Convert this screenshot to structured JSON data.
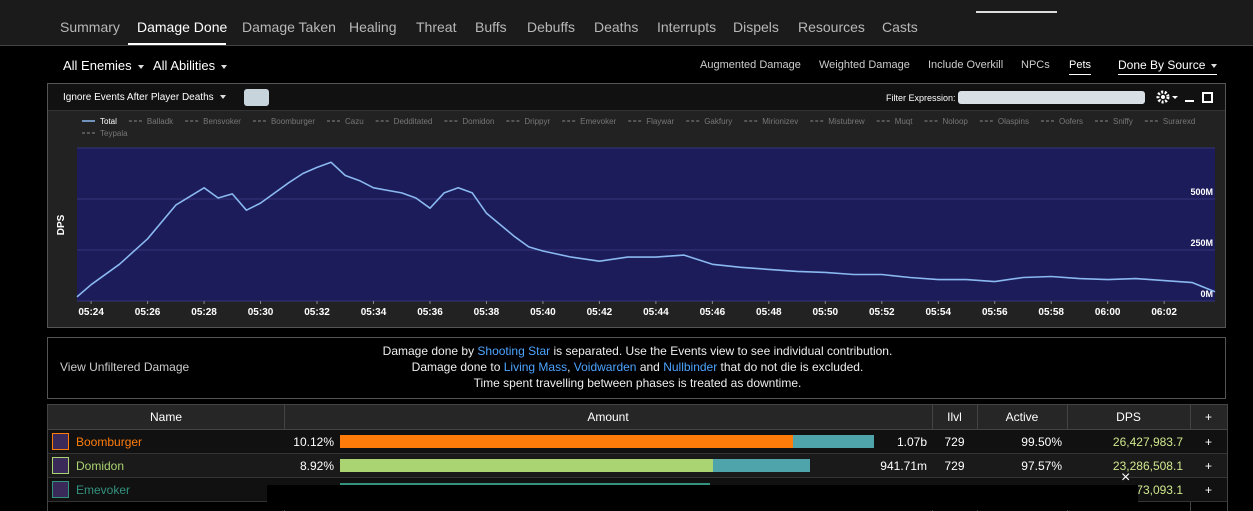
{
  "tabs": [
    "Summary",
    "Damage Done",
    "Damage Taken",
    "Healing",
    "Threat",
    "Buffs",
    "Debuffs",
    "Deaths",
    "Interrupts",
    "Dispels",
    "Resources",
    "Casts"
  ],
  "filters": {
    "enemies": "All Enemies",
    "abilities": "All Abilities",
    "options": [
      "Augmented Damage",
      "Weighted Damage",
      "Include Overkill",
      "NPCs",
      "Pets"
    ],
    "source": "Done By Source"
  },
  "panel": {
    "ignore": "Ignore Events After Player Deaths",
    "filter_label": "Filter Expression:"
  },
  "chart_data": {
    "type": "line",
    "y_label": "DPS",
    "x": [
      323.5,
      324,
      325,
      326,
      327,
      328,
      328.5,
      329,
      329.5,
      330,
      331,
      331.5,
      332,
      332.5,
      333,
      333.5,
      334,
      335,
      335.5,
      336,
      336.5,
      337,
      337.5,
      338,
      339,
      339.5,
      340,
      341,
      342,
      343,
      344,
      345,
      346,
      347,
      348,
      349,
      350,
      351,
      352,
      353,
      354,
      355,
      356,
      357,
      358,
      359,
      360,
      361,
      362,
      363,
      363.8
    ],
    "series": [
      {
        "name": "Total",
        "color": "#8ab8f0",
        "values": [
          20,
          80,
          180,
          305,
          470,
          555,
          505,
          525,
          445,
          480,
          580,
          625,
          655,
          680,
          615,
          590,
          555,
          530,
          505,
          455,
          530,
          555,
          530,
          430,
          315,
          265,
          245,
          215,
          195,
          215,
          215,
          225,
          180,
          165,
          155,
          145,
          140,
          130,
          130,
          115,
          105,
          105,
          95,
          115,
          120,
          110,
          105,
          110,
          100,
          90,
          45
        ]
      }
    ],
    "legend_hidden": [
      "Balladk",
      "Bensvoker",
      "Boomburger",
      "Cazu",
      "Dedditated",
      "Domidon",
      "Drippyr",
      "Emevoker",
      "Flaywar",
      "Gakfury",
      "Mirionizev",
      "Mistubrew",
      "Muqt",
      "Noloop",
      "Olaspins",
      "Oofers",
      "Sniffy",
      "Surarexd",
      "Teypala"
    ],
    "hidden_color": "#666666",
    "xlim": [
      323.5,
      363.8
    ],
    "xticks": [
      {
        "value": 324,
        "label": "05:24"
      },
      {
        "value": 326,
        "label": "05:26"
      },
      {
        "value": 328,
        "label": "05:28"
      },
      {
        "value": 330,
        "label": "05:30"
      },
      {
        "value": 332,
        "label": "05:32"
      },
      {
        "value": 334,
        "label": "05:34"
      },
      {
        "value": 336,
        "label": "05:36"
      },
      {
        "value": 338,
        "label": "05:38"
      },
      {
        "value": 340,
        "label": "05:40"
      },
      {
        "value": 342,
        "label": "05:42"
      },
      {
        "value": 344,
        "label": "05:44"
      },
      {
        "value": 346,
        "label": "05:46"
      },
      {
        "value": 348,
        "label": "05:48"
      },
      {
        "value": 350,
        "label": "05:50"
      },
      {
        "value": 352,
        "label": "05:52"
      },
      {
        "value": 354,
        "label": "05:54"
      },
      {
        "value": 356,
        "label": "05:56"
      },
      {
        "value": 358,
        "label": "05:58"
      },
      {
        "value": 360,
        "label": "06:00"
      },
      {
        "value": 362,
        "label": "06:02"
      }
    ],
    "ylim": [
      0,
      750
    ],
    "yticks": [
      {
        "value": 0,
        "label": "0M"
      },
      {
        "value": 250,
        "label": "250M"
      },
      {
        "value": 500,
        "label": "500M"
      }
    ],
    "grid": true,
    "plot_color": "#1c1c5a",
    "grid_color": "#34347a"
  },
  "notice": {
    "link": "View Unfiltered Damage",
    "lines": [
      [
        "Damage done by ",
        "Shooting Star",
        " is separated. Use the Events view to see individual contribution."
      ],
      [
        "Damage done to ",
        "Living Mass",
        ", ",
        "Voidwarden",
        " and ",
        "Nullbinder",
        " that do not die is excluded."
      ],
      [
        "Time spent travelling between phases is treated as downtime."
      ]
    ]
  },
  "table": {
    "columns": [
      "Name",
      "Amount",
      "Ilvl",
      "Active",
      "DPS",
      "+"
    ],
    "pet_color": "#4fa3ab",
    "rows": [
      {
        "name": "Boomburger",
        "color": "#ff7c0a",
        "percent": "10.12%",
        "bar": [
          908,
          162
        ],
        "amount": "1.07b",
        "ilvl": "729",
        "active": "99.50%",
        "dps": "26,427,983.7",
        "action": "+"
      },
      {
        "name": "Domidon",
        "color": "#aad372",
        "percent": "8.92%",
        "bar": [
          747,
          195
        ],
        "amount": "941.71m",
        "ilvl": "729",
        "active": "97.57%",
        "dps": "23,286,508.1",
        "action": "+"
      },
      {
        "name": "Emevoker",
        "color": "#33937f",
        "bar": [
          741
        ],
        "dps": "73,093.1",
        "action": "+"
      }
    ]
  },
  "overlay": {
    "close": "×"
  }
}
